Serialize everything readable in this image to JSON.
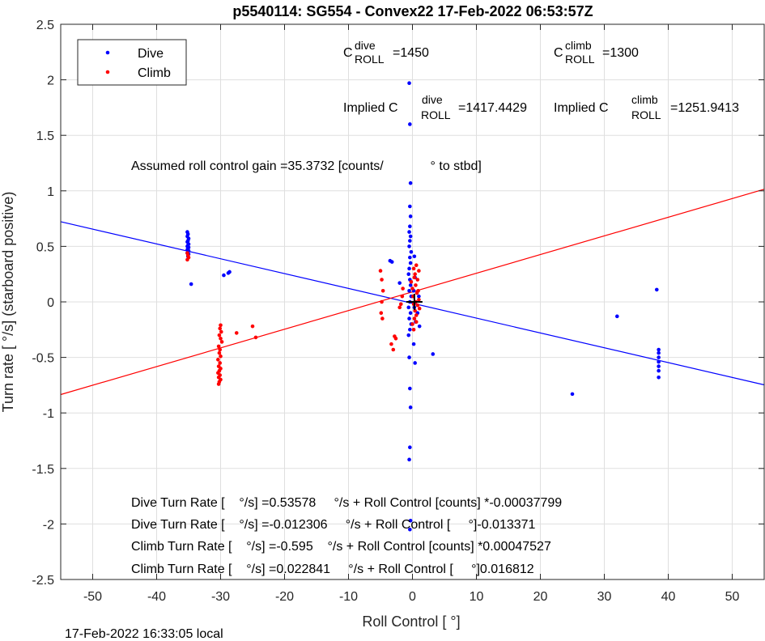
{
  "chart_data": {
    "type": "scatter",
    "title": "p5540114: SG554 - Convex22 17-Feb-2022 06:53:57Z",
    "xlabel": "Roll Control [   °]",
    "ylabel": "Turn rate [   °/s] (starboard positive)",
    "xlim": [
      -55,
      55
    ],
    "ylim": [
      -2.5,
      2.5
    ],
    "xticks": [
      -50,
      -40,
      -30,
      -20,
      -10,
      0,
      10,
      20,
      30,
      40,
      50
    ],
    "yticks": [
      -2.5,
      -2,
      -1.5,
      -1,
      -0.5,
      0,
      0.5,
      1,
      1.5,
      2,
      2.5
    ],
    "xtick_labels": [
      "-50",
      "-40",
      "-30",
      "-20",
      "-10",
      "0",
      "10",
      "20",
      "30",
      "40",
      "50"
    ],
    "ytick_labels": [
      "-2.5",
      "-2",
      "-1.5",
      "-1",
      "-0.5",
      "0",
      "0.5",
      "1",
      "1.5",
      "2",
      "2.5"
    ],
    "grid": true,
    "legend_position": "top-left",
    "series": [
      {
        "name": "Dive",
        "color": "#0000ff",
        "points": [
          [
            -35.2,
            0.63
          ],
          [
            -35.1,
            0.61
          ],
          [
            -35.2,
            0.59
          ],
          [
            -35.0,
            0.57
          ],
          [
            -35.1,
            0.55
          ],
          [
            -35.2,
            0.54
          ],
          [
            -35.0,
            0.52
          ],
          [
            -35.1,
            0.51
          ],
          [
            -35.2,
            0.5
          ],
          [
            -35.0,
            0.49
          ],
          [
            -35.1,
            0.48
          ],
          [
            -35.2,
            0.47
          ],
          [
            -35.0,
            0.46
          ],
          [
            -35.1,
            0.45
          ],
          [
            -35.2,
            0.44
          ],
          [
            -35.0,
            0.43
          ],
          [
            -35.1,
            0.41
          ],
          [
            -34.6,
            0.16
          ],
          [
            -29.5,
            0.24
          ],
          [
            -28.8,
            0.26
          ],
          [
            -28.6,
            0.27
          ],
          [
            -3.5,
            0.37
          ],
          [
            -3.2,
            0.36
          ],
          [
            -2.0,
            0.17
          ],
          [
            -0.5,
            1.97
          ],
          [
            -0.4,
            1.6
          ],
          [
            -0.3,
            1.07
          ],
          [
            -0.4,
            0.86
          ],
          [
            -0.3,
            0.77
          ],
          [
            -0.4,
            0.68
          ],
          [
            -0.5,
            0.63
          ],
          [
            -0.3,
            0.59
          ],
          [
            -0.4,
            0.55
          ],
          [
            -0.5,
            0.5
          ],
          [
            -0.2,
            0.45
          ],
          [
            -0.4,
            0.4
          ],
          [
            -0.3,
            0.35
          ],
          [
            -0.5,
            0.3
          ],
          [
            -0.6,
            0.25
          ],
          [
            -0.4,
            0.2
          ],
          [
            -0.3,
            0.15
          ],
          [
            -0.5,
            0.1
          ],
          [
            -0.2,
            0.05
          ],
          [
            -0.4,
            0.0
          ],
          [
            -0.6,
            -0.05
          ],
          [
            -0.3,
            -0.1
          ],
          [
            -0.5,
            -0.15
          ],
          [
            -0.2,
            -0.2
          ],
          [
            -0.4,
            -0.25
          ],
          [
            -0.6,
            -0.3
          ],
          [
            -0.5,
            -0.5
          ],
          [
            -0.4,
            -0.78
          ],
          [
            -0.3,
            -0.95
          ],
          [
            -0.4,
            -1.31
          ],
          [
            -0.5,
            -1.42
          ],
          [
            -0.3,
            -1.97
          ],
          [
            -0.4,
            -2.05
          ],
          [
            0.3,
            0.41
          ],
          [
            0.4,
            0.22
          ],
          [
            0.2,
            0.1
          ],
          [
            0.3,
            -0.05
          ],
          [
            0.5,
            -0.18
          ],
          [
            0.2,
            -0.38
          ],
          [
            0.4,
            -0.55
          ],
          [
            0.8,
            -0.1
          ],
          [
            1.0,
            0.05
          ],
          [
            1.1,
            -0.22
          ],
          [
            3.2,
            -0.47
          ],
          [
            25.0,
            -0.83
          ],
          [
            32.0,
            -0.13
          ],
          [
            38.2,
            0.11
          ],
          [
            38.5,
            -0.43
          ],
          [
            38.5,
            -0.46
          ],
          [
            38.5,
            -0.5
          ],
          [
            38.5,
            -0.54
          ],
          [
            38.5,
            -0.58
          ],
          [
            38.5,
            -0.62
          ],
          [
            38.5,
            -0.68
          ]
        ]
      },
      {
        "name": "Climb",
        "color": "#ff0000",
        "points": [
          [
            -35.2,
            0.44
          ],
          [
            -35.1,
            0.42
          ],
          [
            -35.0,
            0.4
          ],
          [
            -35.2,
            0.38
          ],
          [
            -30.0,
            -0.21
          ],
          [
            -30.1,
            -0.24
          ],
          [
            -29.9,
            -0.27
          ],
          [
            -30.2,
            -0.3
          ],
          [
            -30.0,
            -0.33
          ],
          [
            -29.8,
            -0.36
          ],
          [
            -30.3,
            -0.4
          ],
          [
            -30.1,
            -0.43
          ],
          [
            -30.2,
            -0.46
          ],
          [
            -30.0,
            -0.49
          ],
          [
            -30.4,
            -0.52
          ],
          [
            -30.1,
            -0.55
          ],
          [
            -30.3,
            -0.58
          ],
          [
            -30.0,
            -0.6
          ],
          [
            -30.2,
            -0.62
          ],
          [
            -30.4,
            -0.64
          ],
          [
            -30.1,
            -0.66
          ],
          [
            -30.3,
            -0.68
          ],
          [
            -30.0,
            -0.7
          ],
          [
            -30.2,
            -0.72
          ],
          [
            -30.3,
            -0.74
          ],
          [
            -27.5,
            -0.28
          ],
          [
            -25.0,
            -0.22
          ],
          [
            -24.5,
            -0.32
          ],
          [
            -5.0,
            0.28
          ],
          [
            -4.8,
            0.2
          ],
          [
            -4.6,
            0.1
          ],
          [
            -4.8,
            0.0
          ],
          [
            -4.9,
            -0.1
          ],
          [
            -4.7,
            -0.15
          ],
          [
            -3.3,
            -0.38
          ],
          [
            -3.0,
            -0.43
          ],
          [
            -2.8,
            -0.31
          ],
          [
            -2.6,
            -0.33
          ],
          [
            -2.0,
            -0.05
          ],
          [
            -1.8,
            -0.02
          ],
          [
            -1.6,
            0.05
          ],
          [
            -1.5,
            0.12
          ],
          [
            -0.2,
            0.18
          ],
          [
            0.0,
            0.12
          ],
          [
            0.2,
            0.3
          ],
          [
            0.3,
            0.22
          ],
          [
            0.5,
            0.15
          ],
          [
            0.7,
            0.08
          ],
          [
            0.8,
            0.2
          ],
          [
            1.0,
            0.28
          ],
          [
            0.6,
            0.33
          ],
          [
            0.1,
            0.05
          ],
          [
            0.2,
            -0.02
          ],
          [
            0.4,
            -0.08
          ],
          [
            0.6,
            -0.12
          ],
          [
            0.8,
            -0.03
          ],
          [
            1.0,
            0.02
          ],
          [
            0.3,
            -0.15
          ],
          [
            0.5,
            0.0
          ],
          [
            0.9,
            0.1
          ],
          [
            1.1,
            -0.06
          ],
          [
            0.0,
            -0.2
          ],
          [
            0.2,
            -0.25
          ],
          [
            0.6,
            -0.18
          ],
          [
            0.4,
            0.25
          ]
        ]
      }
    ],
    "fit_lines": [
      {
        "name": "Dive fit",
        "color": "#0000ff",
        "x": [
          -55,
          55
        ],
        "y": [
          0.7223,
          -0.7472
        ]
      },
      {
        "name": "Climb fit",
        "color": "#ff0000",
        "x": [
          -55,
          55
        ],
        "y": [
          -0.8345,
          1.0145
        ]
      }
    ],
    "center_marker": {
      "x": 0.3,
      "y": 0.0
    },
    "annotations": {
      "c_dive_label": "C",
      "c_dive_sup": "dive",
      "c_dive_sub": "ROLL",
      "c_dive_value": "=1450",
      "c_climb_label": "C",
      "c_climb_sup": "climb",
      "c_climb_sub": "ROLL",
      "c_climb_value": "=1300",
      "implied_dive_label": "Implied C",
      "implied_dive_sup": "dive",
      "implied_dive_sub": "ROLL",
      "implied_dive_value": "=1417.4429",
      "implied_climb_label": "Implied C",
      "implied_climb_sup": "climb",
      "implied_climb_sub": "ROLL",
      "implied_climb_value": "=1251.9413",
      "gain_line": "Assumed roll control gain =35.3732 [counts/             ° to stbd]",
      "fit_line_1": "Dive Turn Rate [    °/s] =0.53578     °/s + Roll Control [counts] *-0.00037799",
      "fit_line_2": "Dive Turn Rate [    °/s] =-0.012306     °/s + Roll Control [     °]-0.013371",
      "fit_line_3": "Climb Turn Rate [    °/s] =-0.595    °/s + Roll Control [counts] *0.00047527",
      "fit_line_4": "Climb Turn Rate [    °/s] =0.022841     °/s + Roll Control [     °]0.016812"
    },
    "footer": "17-Feb-2022 16:33:05 local"
  }
}
